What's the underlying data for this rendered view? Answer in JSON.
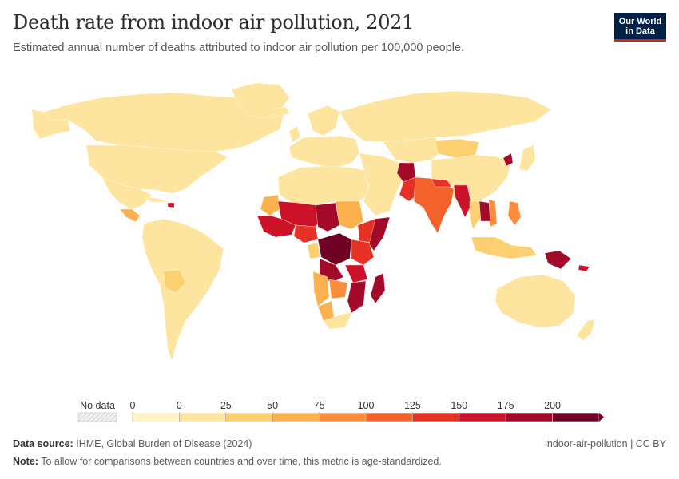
{
  "title": "Death rate from indoor air pollution, 2021",
  "subtitle": "Estimated annual number of deaths attributed to indoor air pollution per 100,000 people.",
  "logo": {
    "line1": "Our World",
    "line2": "in Data"
  },
  "legend": {
    "no_data_label": "No data",
    "ticks": [
      "0",
      "0",
      "25",
      "50",
      "75",
      "100",
      "125",
      "150",
      "175",
      "200"
    ],
    "colors": [
      "#fef4c4",
      "#fde49f",
      "#fcd070",
      "#fbb24e",
      "#f98d3b",
      "#f4622c",
      "#e63225",
      "#cc1228",
      "#a30a2a",
      "#6f0124"
    ]
  },
  "footer": {
    "source_label": "Data source:",
    "source_text": "IHME, Global Burden of Disease (2024)",
    "right_text": "indoor-air-pollution | CC BY",
    "note_label": "Note:",
    "note_text": "To allow for comparisons between countries and over time, this metric is age-standardized."
  },
  "regions": [
    {
      "id": "canada",
      "color": "#fde49f"
    },
    {
      "id": "usa",
      "color": "#fde49f"
    },
    {
      "id": "greenland",
      "color": "#fde49f"
    },
    {
      "id": "mexico",
      "color": "#fde49f"
    },
    {
      "id": "central-america",
      "color": "#fbb24e"
    },
    {
      "id": "caribbean-haiti",
      "color": "#cc1228"
    },
    {
      "id": "cuba",
      "color": "#fde49f"
    },
    {
      "id": "south-america",
      "color": "#fde49f"
    },
    {
      "id": "bolivia",
      "color": "#fcd070"
    },
    {
      "id": "europe",
      "color": "#fde49f"
    },
    {
      "id": "uk",
      "color": "#fde49f"
    },
    {
      "id": "iceland",
      "color": "#fde49f"
    },
    {
      "id": "scandinavia",
      "color": "#fde49f"
    },
    {
      "id": "russia",
      "color": "#fde49f"
    },
    {
      "id": "north-africa",
      "color": "#fde49f"
    },
    {
      "id": "middle-east",
      "color": "#fde49f"
    },
    {
      "id": "central-asia",
      "color": "#fde49f"
    },
    {
      "id": "mongolia",
      "color": "#fcd070"
    },
    {
      "id": "china",
      "color": "#fde49f"
    },
    {
      "id": "north-korea",
      "color": "#a30a2a"
    },
    {
      "id": "japan",
      "color": "#fde49f"
    },
    {
      "id": "afghanistan",
      "color": "#a30a2a"
    },
    {
      "id": "pakistan",
      "color": "#e63225"
    },
    {
      "id": "india",
      "color": "#f4622c"
    },
    {
      "id": "nepal",
      "color": "#e63225"
    },
    {
      "id": "myanmar",
      "color": "#cc1228"
    },
    {
      "id": "laos-cambodia",
      "color": "#a30a2a"
    },
    {
      "id": "thailand",
      "color": "#fcd070"
    },
    {
      "id": "vietnam",
      "color": "#f98d3b"
    },
    {
      "id": "philippines",
      "color": "#f98d3b"
    },
    {
      "id": "indonesia",
      "color": "#fcd070"
    },
    {
      "id": "papua-new-guinea",
      "color": "#a30a2a"
    },
    {
      "id": "solomon-islands",
      "color": "#cc1228"
    },
    {
      "id": "australia",
      "color": "#fde49f"
    },
    {
      "id": "new-zealand",
      "color": "#fde49f"
    },
    {
      "id": "mali-niger",
      "color": "#cc1228"
    },
    {
      "id": "mauritania",
      "color": "#fbb24e"
    },
    {
      "id": "west-africa-coast",
      "color": "#cc1228"
    },
    {
      "id": "nigeria",
      "color": "#e63225"
    },
    {
      "id": "chad",
      "color": "#a30a2a"
    },
    {
      "id": "sudan",
      "color": "#fbb24e"
    },
    {
      "id": "ethiopia",
      "color": "#e63225"
    },
    {
      "id": "somalia",
      "color": "#a30a2a"
    },
    {
      "id": "central-africa",
      "color": "#6f0124"
    },
    {
      "id": "dr-congo",
      "color": "#a30a2a"
    },
    {
      "id": "gabon",
      "color": "#fcd070"
    },
    {
      "id": "east-africa",
      "color": "#e63225"
    },
    {
      "id": "tanzania",
      "color": "#cc1228"
    },
    {
      "id": "angola",
      "color": "#fbb24e"
    },
    {
      "id": "zambia",
      "color": "#f98d3b"
    },
    {
      "id": "mozambique",
      "color": "#a30a2a"
    },
    {
      "id": "namibia",
      "color": "#fbb24e"
    },
    {
      "id": "southern-africa",
      "color": "#fde49f"
    },
    {
      "id": "madagascar",
      "color": "#a30a2a"
    }
  ]
}
